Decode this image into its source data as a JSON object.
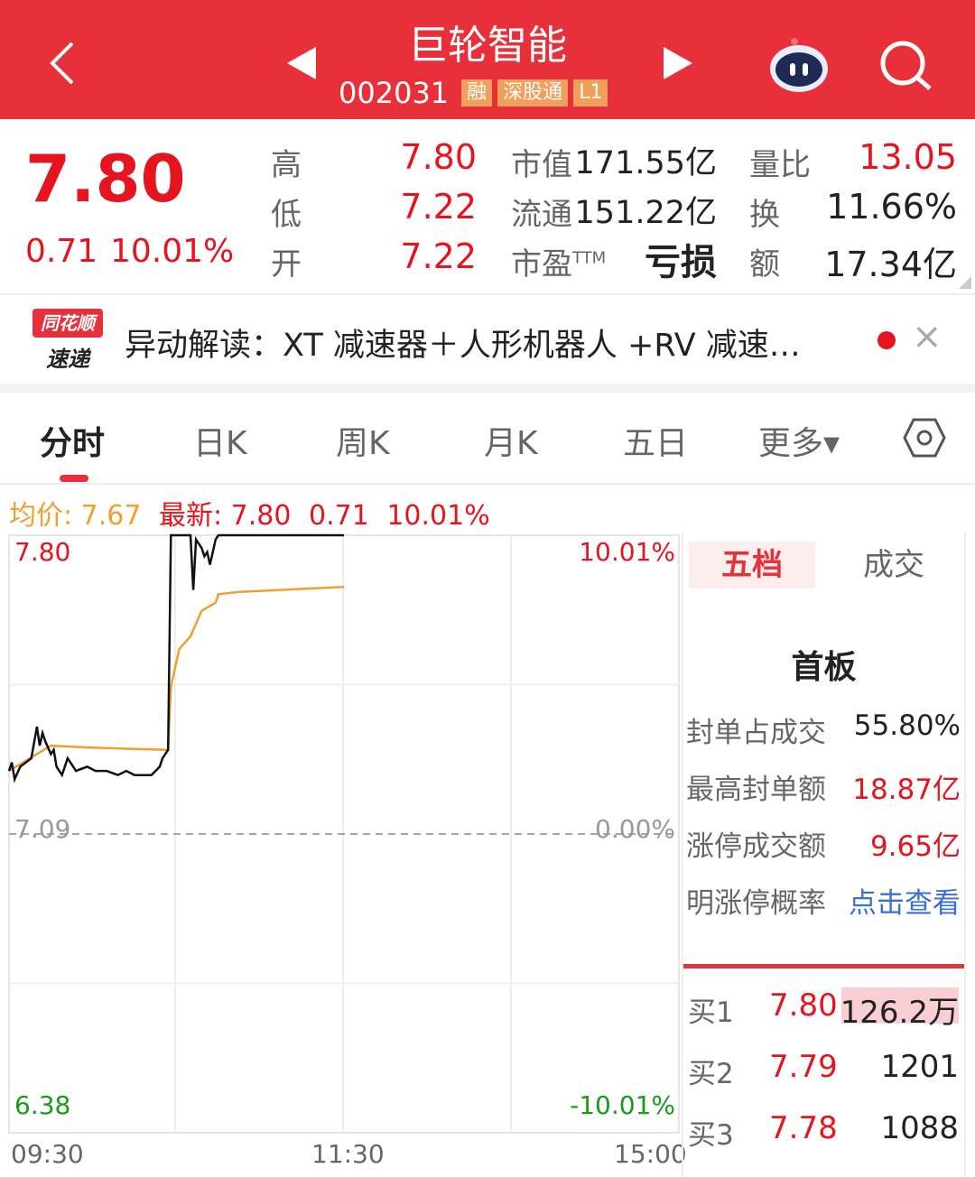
{
  "header": {
    "title": "巨轮智能",
    "code": "002031",
    "tags": [
      "融",
      "深股通",
      "L1"
    ]
  },
  "quote": {
    "price": "7.80",
    "change": "0.71",
    "change_pct": "10.01%",
    "stats": [
      {
        "label": "高",
        "value": "7.80"
      },
      {
        "label": "低",
        "value": "7.22"
      },
      {
        "label": "开",
        "value": "7.22"
      },
      {
        "label": "市值",
        "value": "171.55亿"
      },
      {
        "label": "流通",
        "value": "151.22亿"
      },
      {
        "label": "市盈",
        "sup": "TTM",
        "value": "亏损"
      },
      {
        "label": "量比",
        "value": "13.05"
      },
      {
        "label": "换",
        "value": "11.66%"
      },
      {
        "label": "额",
        "value": "17.34亿"
      }
    ]
  },
  "news": {
    "logo_top": "同花顺",
    "logo_bottom": "速递",
    "text": "异动解读：XT 减速器＋人形机器人 +RV 减速…",
    "close": "×"
  },
  "tabs": [
    {
      "label": "分时",
      "active": true
    },
    {
      "label": "日K"
    },
    {
      "label": "周K"
    },
    {
      "label": "月K"
    },
    {
      "label": "五日"
    },
    {
      "label": "更多▾"
    }
  ],
  "infobar": {
    "avg_label": "均价: 7.67",
    "latest_label": "最新: 7.80",
    "change": "0.71",
    "pct": "10.01%"
  },
  "colors": {
    "brand": "#e8303b",
    "up": "#e5141e",
    "down": "#1a9a1a",
    "avg_line": "#f0a030",
    "price_line": "#111111",
    "link": "#3a6fd8"
  },
  "chart_data": {
    "type": "line",
    "y_left_ticks": [
      "7.80",
      "7.09",
      "6.38"
    ],
    "y_right_ticks": [
      "10.01%",
      "0.00%",
      "-10.01%"
    ],
    "x_ticks": [
      "09:30",
      "11:30",
      "15:00"
    ],
    "ylim": [
      6.38,
      7.8
    ],
    "prev_close": 7.09,
    "series": [
      {
        "key": "price",
        "x": [
          "09:30",
          "09:31",
          "09:32",
          "09:34",
          "09:36",
          "09:38",
          "09:40",
          "09:41",
          "09:42",
          "09:43",
          "09:45",
          "09:46",
          "09:47",
          "09:49",
          "09:51",
          "09:54",
          "09:58",
          "10:01",
          "10:05",
          "10:09",
          "10:12",
          "10:15",
          "10:21",
          "10:24",
          "10:25",
          "10:27",
          "10:28",
          "10:35",
          "10:36",
          "10:37",
          "10:39",
          "10:40",
          "10:41",
          "10:42",
          "10:44",
          "10:45",
          "11:30"
        ],
        "values": [
          7.24,
          7.26,
          7.22,
          7.25,
          7.26,
          7.27,
          7.345,
          7.3,
          7.33,
          7.31,
          7.28,
          7.29,
          7.25,
          7.23,
          7.27,
          7.24,
          7.25,
          7.24,
          7.24,
          7.23,
          7.24,
          7.23,
          7.23,
          7.25,
          7.27,
          7.29,
          7.8,
          7.8,
          7.67,
          7.79,
          7.77,
          7.75,
          7.76,
          7.73,
          7.79,
          7.8,
          7.8
        ]
      },
      {
        "key": "avg",
        "x": [
          "09:30",
          "09:40",
          "09:45",
          "10:00",
          "10:27",
          "10:28",
          "10:31",
          "10:35",
          "10:39",
          "10:44",
          "10:45",
          "10:52",
          "11:30"
        ],
        "values": [
          7.24,
          7.28,
          7.3,
          7.295,
          7.29,
          7.44,
          7.53,
          7.56,
          7.62,
          7.64,
          7.66,
          7.665,
          7.677
        ]
      }
    ]
  },
  "panel": {
    "tabs": [
      "五档",
      "成交"
    ],
    "title": "首板",
    "rows": [
      {
        "label": "封单占成交",
        "value": "55.80%"
      },
      {
        "label": "最高封单额",
        "value": "18.87亿"
      },
      {
        "label": "涨停成交额",
        "value": "9.65亿"
      },
      {
        "label": "明涨停概率",
        "value": "点击查看"
      }
    ],
    "book": [
      {
        "label": "买1",
        "price": "7.80",
        "vol": "126.2万"
      },
      {
        "label": "买2",
        "price": "7.79",
        "vol": "1201"
      },
      {
        "label": "买3",
        "price": "7.78",
        "vol": "1088"
      }
    ]
  }
}
